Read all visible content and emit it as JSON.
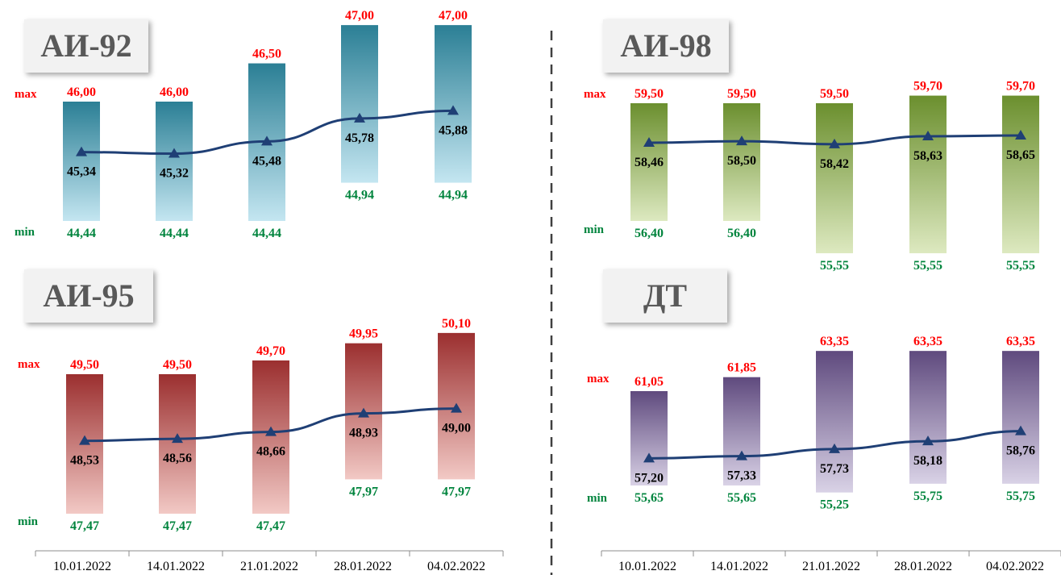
{
  "chart_data": [
    {
      "type": "bar",
      "title": "АИ-92",
      "categories": [
        "10.01.2022",
        "14.01.2022",
        "21.01.2022",
        "28.01.2022",
        "04.02.2022"
      ],
      "series": [
        {
          "name": "max",
          "values": [
            46.0,
            46.0,
            46.5,
            47.0,
            47.0
          ]
        },
        {
          "name": "min",
          "values": [
            44.44,
            44.44,
            44.44,
            44.94,
            44.94
          ]
        },
        {
          "values": [
            45.34,
            45.32,
            45.48,
            45.78,
            45.88
          ]
        }
      ],
      "max_labels": [
        "46,00",
        "46,00",
        "46,50",
        "47,00",
        "47,00"
      ],
      "min_labels": [
        "44,44",
        "44,44",
        "44,44",
        "44,94",
        "44,94"
      ],
      "avg_labels": [
        "45,34",
        "45,32",
        "45,48",
        "45,78",
        "45,88"
      ],
      "row_labels": {
        "max": "max",
        "min": "min"
      },
      "colors": {
        "bar_top": "#2b7f95",
        "bar_bottom": "#c4e6f1",
        "line": "#1f3f75",
        "max_text": "#ff0000",
        "min_text": "#00843d"
      }
    },
    {
      "type": "bar",
      "title": "АИ-98",
      "categories": [
        "10.01.2022",
        "14.01.2022",
        "21.01.2022",
        "28.01.2022",
        "04.02.2022"
      ],
      "series": [
        {
          "name": "max",
          "values": [
            59.5,
            59.5,
            59.5,
            59.7,
            59.7
          ]
        },
        {
          "name": "min",
          "values": [
            56.4,
            56.4,
            55.55,
            55.55,
            55.55
          ]
        },
        {
          "values": [
            58.46,
            58.5,
            58.42,
            58.63,
            58.65
          ]
        }
      ],
      "max_labels": [
        "59,50",
        "59,50",
        "59,50",
        "59,70",
        "59,70"
      ],
      "min_labels": [
        "56,40",
        "56,40",
        "55,55",
        "55,55",
        "55,55"
      ],
      "avg_labels": [
        "58,46",
        "58,50",
        "58,42",
        "58,63",
        "58,65"
      ],
      "row_labels": {
        "max": "max",
        "min": "min"
      },
      "colors": {
        "bar_top": "#6b8f2e",
        "bar_bottom": "#dde9c0",
        "line": "#1f3f75",
        "max_text": "#ff0000",
        "min_text": "#00843d"
      }
    },
    {
      "type": "bar",
      "title": "АИ-95",
      "categories": [
        "10.01.2022",
        "14.01.2022",
        "21.01.2022",
        "28.01.2022",
        "04.02.2022"
      ],
      "series": [
        {
          "name": "max",
          "values": [
            49.5,
            49.5,
            49.7,
            49.95,
            50.1
          ]
        },
        {
          "name": "min",
          "values": [
            47.47,
            47.47,
            47.47,
            47.97,
            47.97
          ]
        },
        {
          "values": [
            48.53,
            48.56,
            48.66,
            48.93,
            49.0
          ]
        }
      ],
      "max_labels": [
        "49,50",
        "49,50",
        "49,70",
        "49,95",
        "50,10"
      ],
      "min_labels": [
        "47,47",
        "47,47",
        "47,47",
        "47,97",
        "47,97"
      ],
      "avg_labels": [
        "48,53",
        "48,56",
        "48,66",
        "48,93",
        "49,00"
      ],
      "row_labels": {
        "max": "max",
        "min": "min"
      },
      "colors": {
        "bar_top": "#9b2f2f",
        "bar_bottom": "#f2c9c5",
        "line": "#1f3f75",
        "max_text": "#ff0000",
        "min_text": "#00843d"
      }
    },
    {
      "type": "bar",
      "title": "ДТ",
      "categories": [
        "10.01.2022",
        "14.01.2022",
        "21.01.2022",
        "28.01.2022",
        "04.02.2022"
      ],
      "series": [
        {
          "name": "max",
          "values": [
            61.05,
            61.85,
            63.35,
            63.35,
            63.35
          ]
        },
        {
          "name": "min",
          "values": [
            55.65,
            55.65,
            55.25,
            55.75,
            55.75
          ]
        },
        {
          "values": [
            57.2,
            57.33,
            57.73,
            58.18,
            58.76
          ]
        }
      ],
      "max_labels": [
        "61,05",
        "61,85",
        "63,35",
        "63,35",
        "63,35"
      ],
      "min_labels": [
        "55,65",
        "55,65",
        "55,25",
        "55,75",
        "55,75"
      ],
      "avg_labels": [
        "57,20",
        "57,33",
        "57,73",
        "58,18",
        "58,76"
      ],
      "row_labels": {
        "max": "max",
        "min": "min"
      },
      "colors": {
        "bar_top": "#5f4a7e",
        "bar_bottom": "#d9d2e6",
        "line": "#1f3f75",
        "max_text": "#ff0000",
        "min_text": "#00843d"
      }
    }
  ],
  "x_axis_dates": {
    "left": [
      "10.01.2022",
      "14.01.2022",
      "21.01.2022",
      "28.01.2022",
      "04.02.2022"
    ],
    "right": [
      "10.01.2022",
      "14.01.2022",
      "21.01.2022",
      "28.01.2022",
      "04.02.2022"
    ]
  }
}
